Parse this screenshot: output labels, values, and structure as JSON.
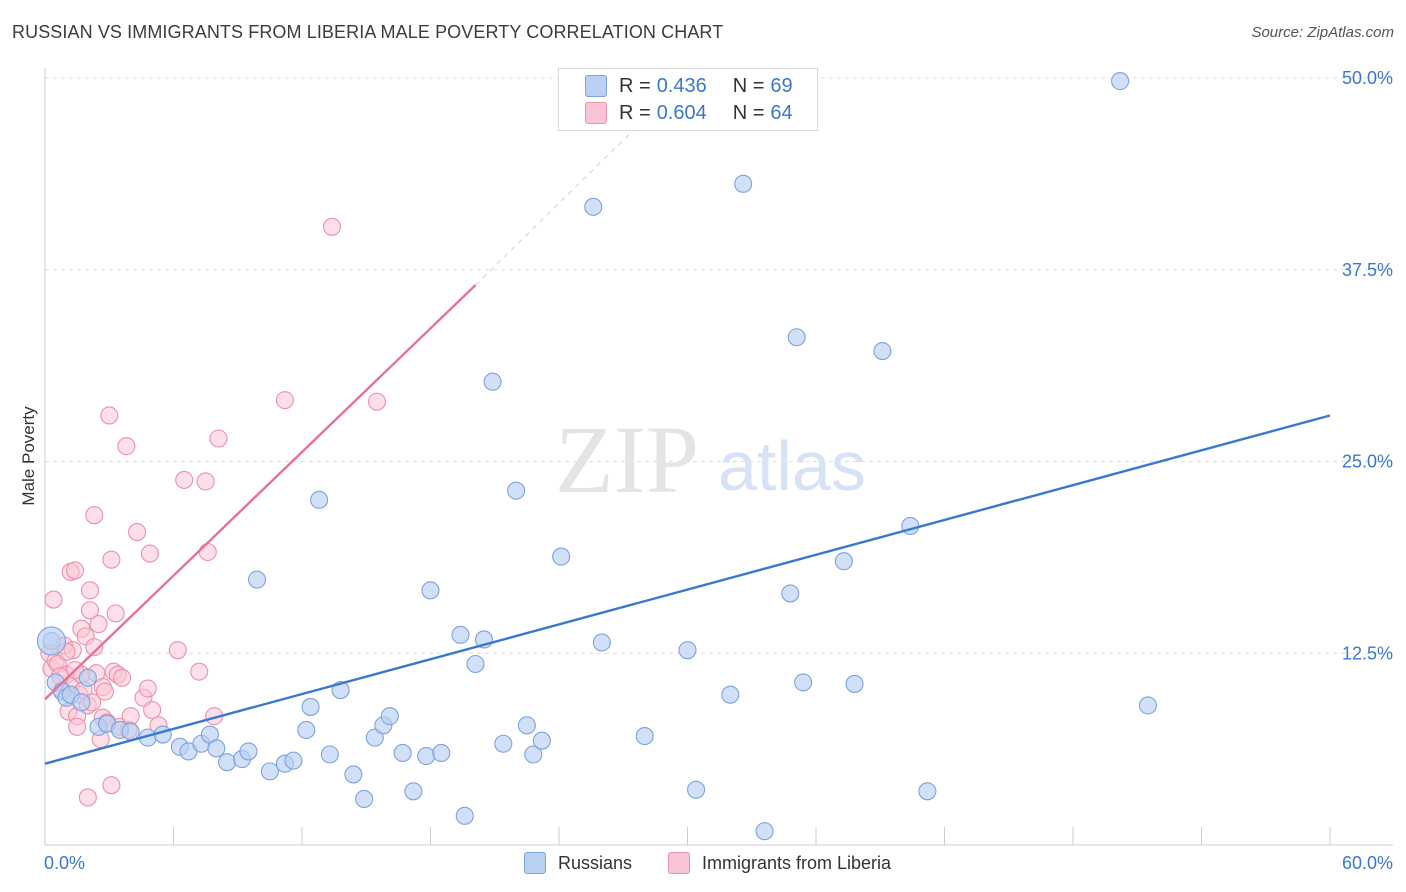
{
  "title": "RUSSIAN VS IMMIGRANTS FROM LIBERIA MALE POVERTY CORRELATION CHART",
  "source": "Source: ZipAtlas.com",
  "watermark": {
    "zip": "ZIP",
    "atlas": "atlas"
  },
  "legend": {
    "r_label": "R =",
    "n_label": "N =",
    "items": [
      {
        "name": "Russians",
        "r": "0.436",
        "n": "69",
        "fill": "#b9d0f3",
        "stroke": "#7aa3e0"
      },
      {
        "name": "Immigrants from Liberia",
        "r": "0.604",
        "n": "64",
        "fill": "#f9c5d4",
        "stroke": "#ef8fad"
      }
    ]
  },
  "colors": {
    "blue": "#3a78d0",
    "pink": "#e8709a",
    "tick_label": "#3a78d0"
  },
  "chart_data": {
    "type": "scatter",
    "title": "RUSSIAN VS IMMIGRANTS FROM LIBERIA MALE POVERTY CORRELATION CHART",
    "xlabel": "",
    "ylabel": "Male Poverty",
    "xlim": [
      0,
      60
    ],
    "ylim": [
      0,
      50
    ],
    "x_tick_labels": [
      "0.0%",
      "60.0%"
    ],
    "y_ticks": [
      12.5,
      25.0,
      37.5,
      50.0
    ],
    "y_tick_labels": [
      "12.5%",
      "25.0%",
      "37.5%",
      "50.0%"
    ],
    "grid": true,
    "series": [
      {
        "name": "Russians",
        "color": "#3a78d0",
        "trend": {
          "x": [
            0,
            60
          ],
          "y": [
            5.3,
            28.0
          ]
        },
        "points": [
          [
            0.3,
            13.3
          ],
          [
            0.5,
            10.6
          ],
          [
            0.8,
            10.0
          ],
          [
            1.0,
            9.6
          ],
          [
            1.2,
            9.8
          ],
          [
            1.7,
            9.3
          ],
          [
            2.0,
            10.9
          ],
          [
            2.5,
            7.7
          ],
          [
            2.9,
            7.9
          ],
          [
            3.5,
            7.5
          ],
          [
            4.0,
            7.4
          ],
          [
            4.8,
            7.0
          ],
          [
            5.5,
            7.2
          ],
          [
            6.3,
            6.4
          ],
          [
            6.7,
            6.1
          ],
          [
            7.3,
            6.6
          ],
          [
            7.7,
            7.2
          ],
          [
            8.0,
            6.3
          ],
          [
            8.5,
            5.4
          ],
          [
            9.2,
            5.6
          ],
          [
            9.5,
            6.1
          ],
          [
            9.9,
            17.3
          ],
          [
            10.5,
            4.8
          ],
          [
            11.2,
            5.3
          ],
          [
            11.6,
            5.5
          ],
          [
            12.2,
            7.5
          ],
          [
            12.4,
            9.0
          ],
          [
            12.8,
            22.5
          ],
          [
            13.3,
            5.9
          ],
          [
            13.8,
            10.1
          ],
          [
            14.4,
            4.6
          ],
          [
            14.9,
            3.0
          ],
          [
            15.4,
            7.0
          ],
          [
            15.8,
            7.8
          ],
          [
            16.1,
            8.4
          ],
          [
            16.7,
            6.0
          ],
          [
            17.2,
            3.5
          ],
          [
            17.8,
            5.8
          ],
          [
            18.0,
            16.6
          ],
          [
            18.5,
            6.0
          ],
          [
            19.4,
            13.7
          ],
          [
            19.6,
            1.9
          ],
          [
            20.1,
            11.8
          ],
          [
            20.5,
            13.4
          ],
          [
            20.9,
            30.2
          ],
          [
            21.4,
            6.6
          ],
          [
            22.0,
            23.1
          ],
          [
            22.5,
            7.8
          ],
          [
            22.8,
            5.9
          ],
          [
            23.2,
            6.8
          ],
          [
            24.1,
            18.8
          ],
          [
            25.6,
            41.6
          ],
          [
            26.0,
            13.2
          ],
          [
            28.0,
            7.1
          ],
          [
            30.4,
            3.6
          ],
          [
            32.0,
            9.8
          ],
          [
            32.6,
            43.1
          ],
          [
            33.6,
            0.9
          ],
          [
            34.8,
            16.4
          ],
          [
            35.1,
            33.1
          ],
          [
            35.4,
            10.6
          ],
          [
            37.3,
            18.5
          ],
          [
            37.8,
            10.5
          ],
          [
            39.1,
            32.2
          ],
          [
            40.4,
            20.8
          ],
          [
            41.2,
            3.5
          ],
          [
            50.2,
            49.8
          ],
          [
            51.5,
            9.1
          ],
          [
            30.0,
            12.7
          ]
        ]
      },
      {
        "name": "Immigrants from Liberia",
        "color": "#e8709a",
        "trend": {
          "x": [
            0,
            20.1
          ],
          "y": [
            9.5,
            36.5
          ]
        },
        "trend_extension": {
          "x": [
            20.1,
            28.5
          ],
          "y": [
            36.5,
            48.0
          ]
        },
        "points": [
          [
            0.2,
            12.5
          ],
          [
            0.3,
            11.5
          ],
          [
            0.4,
            16.0
          ],
          [
            0.5,
            12.0
          ],
          [
            0.6,
            11.8
          ],
          [
            0.8,
            10.1
          ],
          [
            0.9,
            13.0
          ],
          [
            1.0,
            11.1
          ],
          [
            1.1,
            8.7
          ],
          [
            1.2,
            10.4
          ],
          [
            1.2,
            17.8
          ],
          [
            1.3,
            12.7
          ],
          [
            1.4,
            17.9
          ],
          [
            1.5,
            8.4
          ],
          [
            1.5,
            7.7
          ],
          [
            1.6,
            9.8
          ],
          [
            1.7,
            11.1
          ],
          [
            1.7,
            14.1
          ],
          [
            1.8,
            10.1
          ],
          [
            1.9,
            13.6
          ],
          [
            2.0,
            9.1
          ],
          [
            2.0,
            3.1
          ],
          [
            2.1,
            15.3
          ],
          [
            2.1,
            16.6
          ],
          [
            2.3,
            12.9
          ],
          [
            2.3,
            21.5
          ],
          [
            2.4,
            11.2
          ],
          [
            2.5,
            14.4
          ],
          [
            2.6,
            6.9
          ],
          [
            2.7,
            8.3
          ],
          [
            2.7,
            10.3
          ],
          [
            2.8,
            10.0
          ],
          [
            2.9,
            8.0
          ],
          [
            3.0,
            28.0
          ],
          [
            3.1,
            18.6
          ],
          [
            3.1,
            3.9
          ],
          [
            3.2,
            11.3
          ],
          [
            3.3,
            15.1
          ],
          [
            3.4,
            11.1
          ],
          [
            3.5,
            7.7
          ],
          [
            3.6,
            10.9
          ],
          [
            3.8,
            26.0
          ],
          [
            3.9,
            7.5
          ],
          [
            4.0,
            8.4
          ],
          [
            4.3,
            20.4
          ],
          [
            4.6,
            9.6
          ],
          [
            4.8,
            10.2
          ],
          [
            4.9,
            19.0
          ],
          [
            5.0,
            8.8
          ],
          [
            5.3,
            7.8
          ],
          [
            6.2,
            12.7
          ],
          [
            6.5,
            23.8
          ],
          [
            7.2,
            11.3
          ],
          [
            7.5,
            23.7
          ],
          [
            7.6,
            19.1
          ],
          [
            7.9,
            8.4
          ],
          [
            8.1,
            26.5
          ],
          [
            11.2,
            29.0
          ],
          [
            13.4,
            40.3
          ],
          [
            15.5,
            28.9
          ],
          [
            1.0,
            12.6
          ],
          [
            1.4,
            11.4
          ],
          [
            2.2,
            9.3
          ],
          [
            0.7,
            11.0
          ]
        ]
      }
    ]
  }
}
